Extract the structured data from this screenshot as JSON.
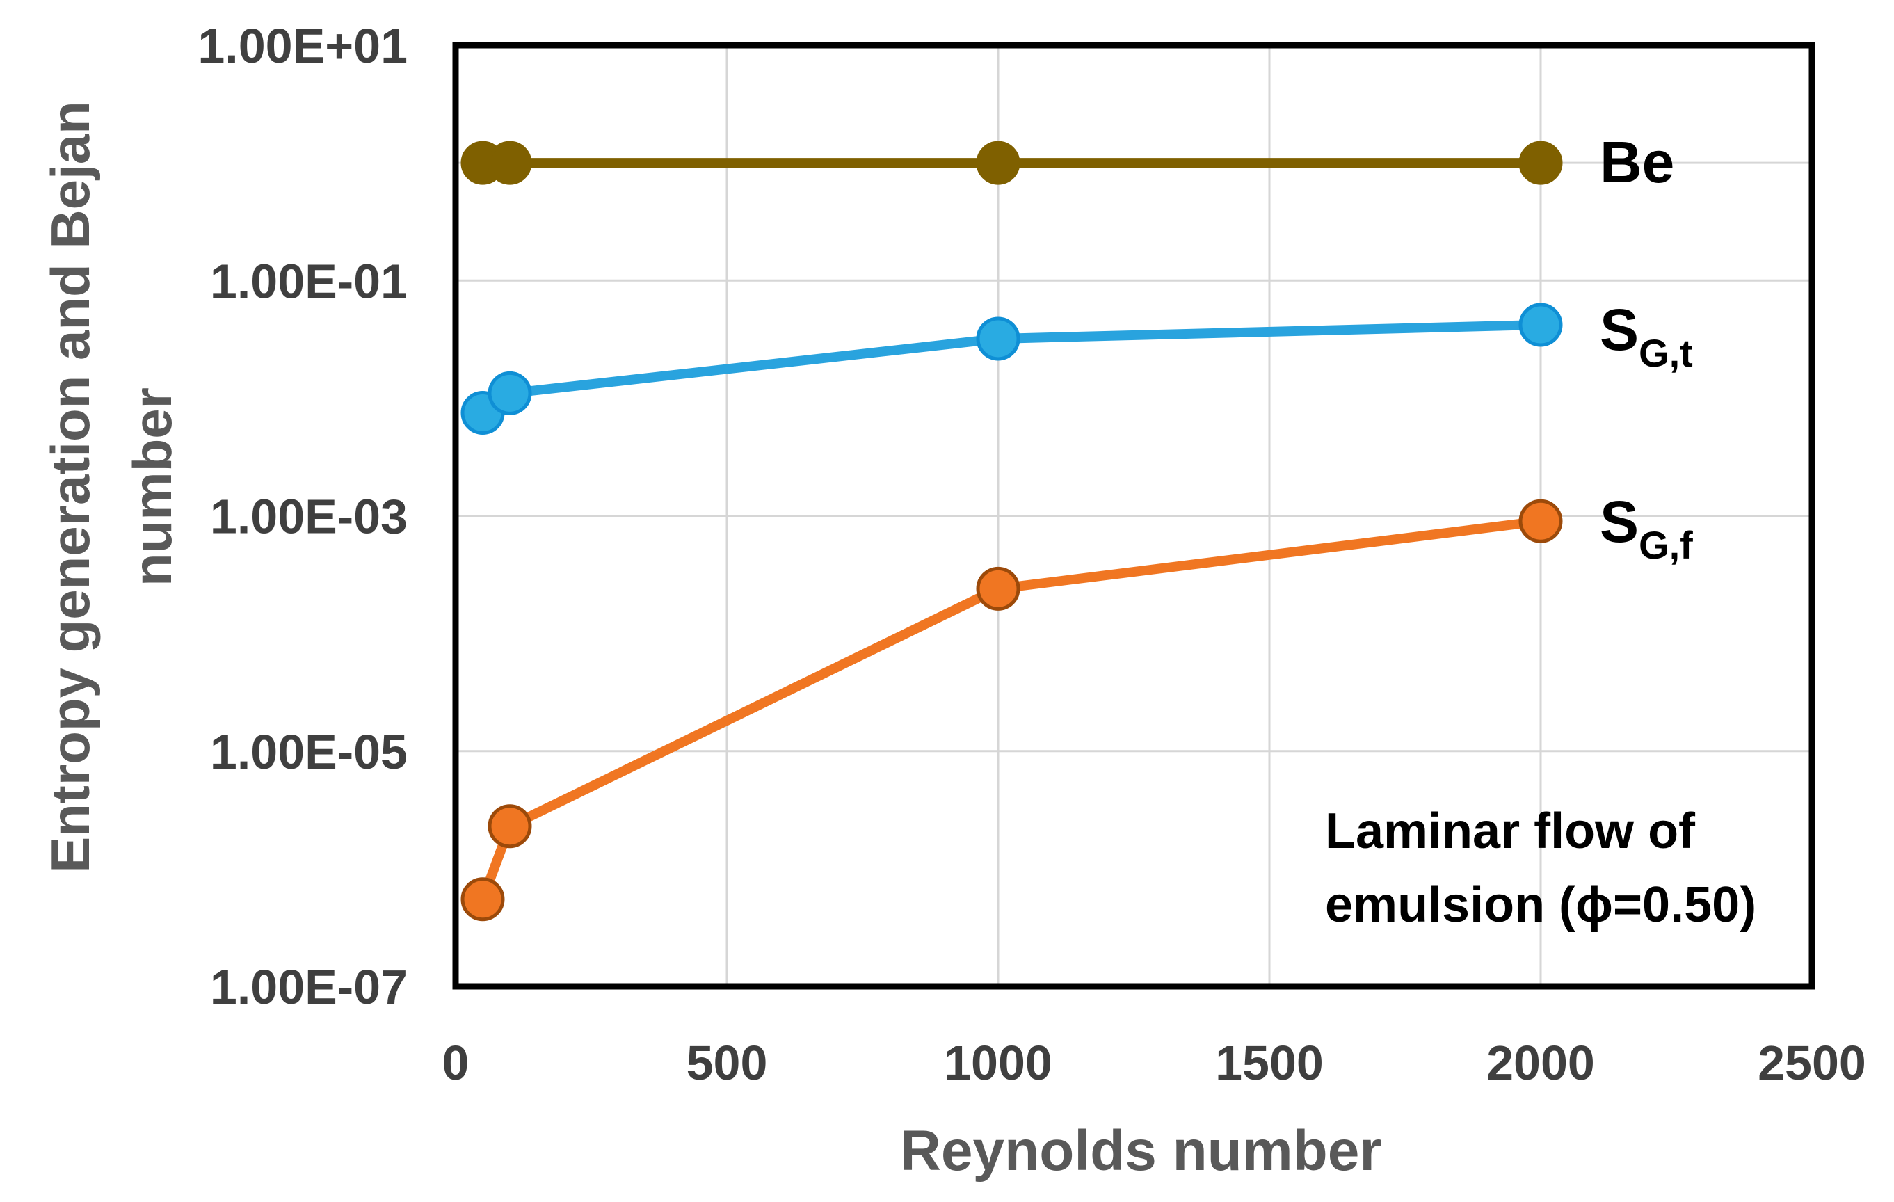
{
  "figure": {
    "background": "#ffffff"
  },
  "chart_data": {
    "type": "line",
    "title": "",
    "xlabel": "Reynolds number",
    "ylabel": "Entropy generation and Bejan number",
    "ylabel_lines": [
      "Entropy generation and Bejan",
      "number"
    ],
    "x_scale": "linear",
    "y_scale": "log",
    "xlim": [
      0,
      2500
    ],
    "ylim": [
      1e-07,
      10
    ],
    "x_ticks": [
      0,
      500,
      1000,
      1500,
      2000,
      2500
    ],
    "x_tick_labels": [
      "0",
      "500",
      "1000",
      "1500",
      "2000",
      "2500"
    ],
    "y_tick_values": [
      10,
      0.1,
      0.001,
      1e-05,
      1e-07
    ],
    "y_tick_labels": [
      "1.00E+01",
      "1.00E-01",
      "1.00E-03",
      "1.00E-05",
      "1.00E-07"
    ],
    "grid": true,
    "axis_crossing_value": 1.0,
    "x": [
      50,
      100,
      1000,
      2000
    ],
    "series": [
      {
        "name": "Be",
        "label_main": "Be",
        "label_sub": "",
        "values": [
          1.0,
          1.0,
          1.0,
          1.0
        ],
        "line_color": "#7F6000",
        "marker_fill": "#7F6000",
        "marker_stroke": "#7F6000"
      },
      {
        "name": "SGt",
        "label_main": "S",
        "label_sub": "G,t",
        "values": [
          0.0075,
          0.011,
          0.032,
          0.042
        ],
        "line_color": "#29A3DE",
        "marker_fill": "#29ABE2",
        "marker_stroke": "#0F8FD5"
      },
      {
        "name": "SGf",
        "label_main": "S",
        "label_sub": "G,f",
        "values": [
          5.5e-07,
          2.3e-06,
          0.00024,
          0.0009
        ],
        "line_color": "#F07622",
        "marker_fill": "#F07622",
        "marker_stroke": "#9C4A0A"
      }
    ],
    "annotation": {
      "line1": "Laminar flow of",
      "line2": "emulsion (ϕ=0.50)"
    },
    "legend_position": "right-inline",
    "colors": {
      "gridline": "#D6D6D6",
      "plot_border": "#000000",
      "tick_label": "#3F3F3F",
      "axis_title": "#595959",
      "annotation_text": "#000000",
      "series_label_text": "#000000"
    }
  }
}
